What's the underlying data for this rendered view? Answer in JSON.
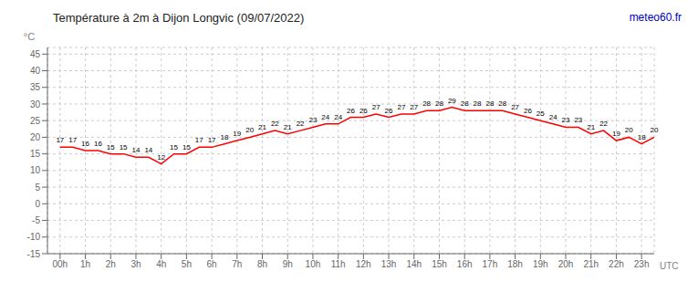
{
  "chart_data": {
    "type": "line",
    "title": "Température à 2m à Dijon Longvic (09/07/2022)",
    "x_label": "UTC",
    "y_label": "°C",
    "annotations": [
      {
        "text": "meteo60.fr",
        "color": "#0000bb"
      }
    ],
    "x": [
      0,
      0.5,
      1,
      1.5,
      2,
      2.5,
      3,
      3.5,
      4,
      4.5,
      5,
      5.5,
      6,
      6.5,
      7,
      7.5,
      8,
      8.5,
      9,
      9.5,
      10,
      10.5,
      11,
      11.5,
      12,
      12.5,
      13,
      13.5,
      14,
      14.5,
      15,
      15.5,
      16,
      16.5,
      17,
      17.5,
      18,
      18.5,
      19,
      19.5,
      20,
      20.5,
      21,
      21.5,
      22,
      22.5,
      23,
      23.5
    ],
    "values": [
      17,
      17,
      16,
      16,
      15,
      15,
      14,
      14,
      12,
      15,
      15,
      17,
      17,
      18,
      19,
      20,
      21,
      22,
      21,
      22,
      23,
      24,
      24,
      26,
      26,
      27,
      26,
      27,
      27,
      28,
      28,
      29,
      28,
      28,
      28,
      28,
      27,
      26,
      25,
      24,
      23,
      23,
      21,
      22,
      19,
      20,
      18,
      20
    ],
    "color": "#ff0000",
    "xlim": [
      -0.5,
      23.5
    ],
    "xticks": [
      {
        "value": 0,
        "label": "00h"
      },
      {
        "value": 1,
        "label": "1h"
      },
      {
        "value": 2,
        "label": "2h"
      },
      {
        "value": 3,
        "label": "3h"
      },
      {
        "value": 4,
        "label": "4h"
      },
      {
        "value": 5,
        "label": "5h"
      },
      {
        "value": 6,
        "label": "6h"
      },
      {
        "value": 7,
        "label": "7h"
      },
      {
        "value": 8,
        "label": "8h"
      },
      {
        "value": 9,
        "label": "9h"
      },
      {
        "value": 10,
        "label": "10h"
      },
      {
        "value": 11,
        "label": "11h"
      },
      {
        "value": 12,
        "label": "12h"
      },
      {
        "value": 13,
        "label": "13h"
      },
      {
        "value": 14,
        "label": "14h"
      },
      {
        "value": 15,
        "label": "15h"
      },
      {
        "value": 16,
        "label": "16h"
      },
      {
        "value": 17,
        "label": "17h"
      },
      {
        "value": 18,
        "label": "18h"
      },
      {
        "value": 19,
        "label": "19h"
      },
      {
        "value": 20,
        "label": "20h"
      },
      {
        "value": 21,
        "label": "21h"
      },
      {
        "value": 22,
        "label": "22h"
      },
      {
        "value": 23,
        "label": "23h"
      }
    ],
    "ylim": [
      -15,
      47
    ],
    "yticks": [
      -15,
      -10,
      -5,
      0,
      5,
      10,
      15,
      20,
      25,
      30,
      35,
      40,
      45
    ],
    "grid": true,
    "data_labels": true
  }
}
